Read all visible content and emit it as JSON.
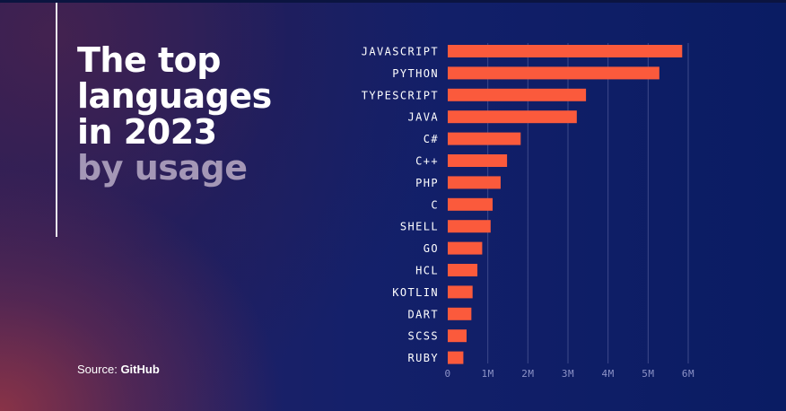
{
  "headline": {
    "line1": "The top",
    "line2": "languages",
    "line3": "in 2023",
    "line4": "by usage"
  },
  "source": {
    "prefix": "Source:",
    "name": "GitHub"
  },
  "colors": {
    "bar": "#fb5a3c",
    "grid": "#3e4a8a",
    "title_muted": "#a497b6"
  },
  "chart_data": {
    "type": "bar",
    "orientation": "horizontal",
    "title": "",
    "xlabel": "",
    "ylabel": "",
    "categories": [
      "JAVASCRIPT",
      "PYTHON",
      "TYPESCRIPT",
      "JAVA",
      "C#",
      "C++",
      "PHP",
      "C",
      "SHELL",
      "GO",
      "HCL",
      "KOTLIN",
      "DART",
      "SCSS",
      "RUBY"
    ],
    "values": [
      5.85,
      5.28,
      3.45,
      3.22,
      1.82,
      1.48,
      1.32,
      1.12,
      1.07,
      0.86,
      0.74,
      0.62,
      0.59,
      0.47,
      0.39
    ],
    "xlim": [
      0,
      6
    ],
    "xticks": [
      0,
      1,
      2,
      3,
      4,
      5,
      6
    ],
    "xtick_labels": [
      "0",
      "1M",
      "2M",
      "3M",
      "4M",
      "5M",
      "6M"
    ],
    "grid": "vertical",
    "legend": "none"
  }
}
